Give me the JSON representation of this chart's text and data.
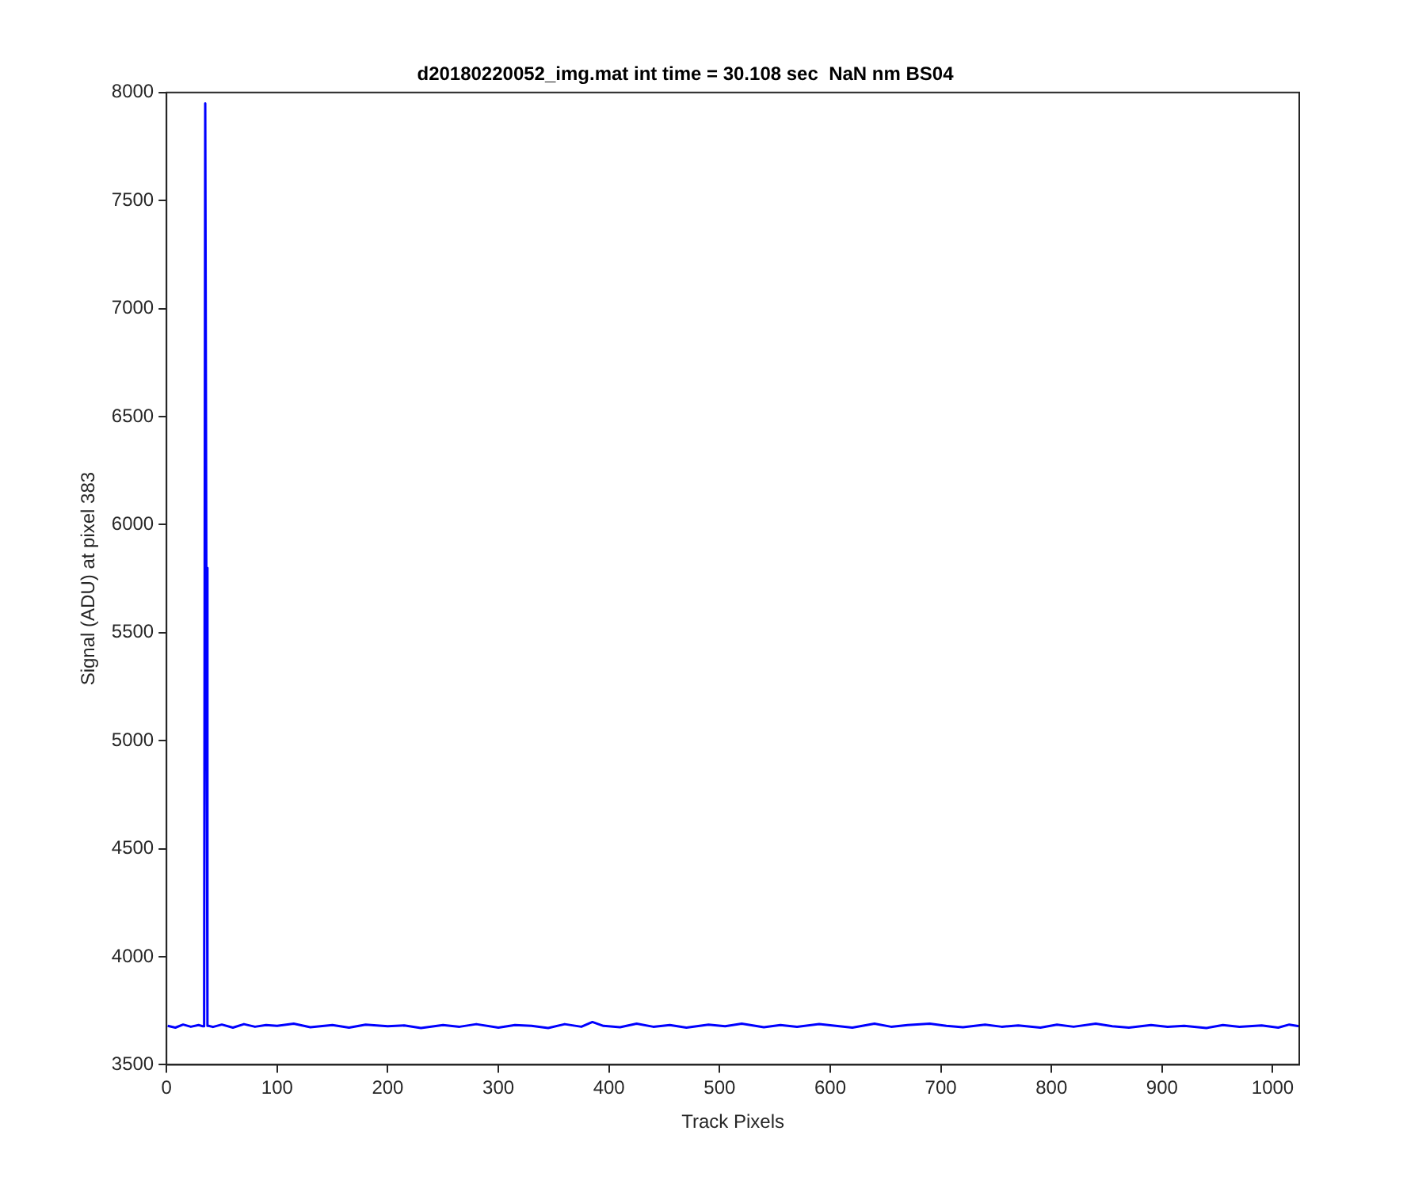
{
  "chart_data": {
    "type": "line",
    "title": "d20180220052_img.mat int time = 30.108 sec  NaN nm BS04",
    "xlabel": "Track Pixels",
    "ylabel": "Signal (ADU) at pixel 383",
    "x": [
      1,
      8,
      15,
      22,
      29,
      33,
      34,
      35,
      36,
      37,
      38,
      42,
      50,
      60,
      70,
      80,
      90,
      100,
      115,
      130,
      150,
      165,
      180,
      200,
      215,
      230,
      250,
      265,
      280,
      300,
      315,
      330,
      345,
      360,
      375,
      385,
      395,
      410,
      425,
      440,
      455,
      470,
      490,
      505,
      520,
      540,
      555,
      570,
      590,
      605,
      620,
      640,
      655,
      670,
      690,
      705,
      720,
      740,
      755,
      770,
      790,
      805,
      820,
      840,
      855,
      870,
      890,
      905,
      920,
      940,
      955,
      970,
      990,
      1005,
      1015,
      1024
    ],
    "series": [
      {
        "color": "#0000ff",
        "values": [
          3680,
          3672,
          3686,
          3676,
          3684,
          3678,
          3690,
          7950,
          5800,
          3680,
          3680,
          3675,
          3686,
          3672,
          3688,
          3676,
          3684,
          3680,
          3690,
          3674,
          3684,
          3672,
          3686,
          3678,
          3682,
          3670,
          3684,
          3676,
          3688,
          3672,
          3684,
          3680,
          3670,
          3688,
          3676,
          3698,
          3680,
          3674,
          3690,
          3676,
          3684,
          3672,
          3686,
          3678,
          3690,
          3674,
          3684,
          3676,
          3688,
          3680,
          3672,
          3690,
          3676,
          3684,
          3690,
          3680,
          3674,
          3686,
          3676,
          3682,
          3672,
          3686,
          3676,
          3690,
          3678,
          3672,
          3684,
          3676,
          3680,
          3670,
          3684,
          3676,
          3682,
          3672,
          3686,
          3678
        ]
      }
    ],
    "xlim": [
      0,
      1024
    ],
    "xticks": [
      0,
      100,
      200,
      300,
      400,
      500,
      600,
      700,
      800,
      900,
      1000
    ],
    "ylim": [
      3500,
      8000
    ],
    "yticks": [
      3500,
      4000,
      4500,
      5000,
      5500,
      6000,
      6500,
      7000,
      7500,
      8000
    ],
    "grid": false,
    "legend": false,
    "marker": "none",
    "line_style": "solid"
  }
}
